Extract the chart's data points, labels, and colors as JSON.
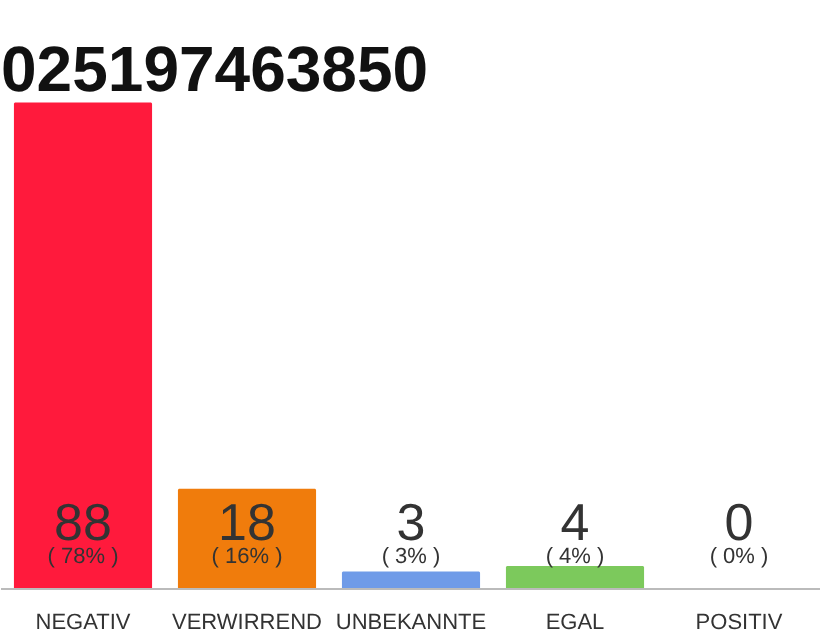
{
  "chart_data": {
    "type": "bar",
    "title": "025197463850",
    "categories": [
      "NEGATIV",
      "VERWIRREND",
      "UNBEKANNTE",
      "EGAL",
      "POSITIV"
    ],
    "values": [
      88,
      18,
      3,
      4,
      0
    ],
    "colors": [
      "#ff1a3c",
      "#f07c0c",
      "#6f9be8",
      "#7cc95c",
      "#cccccc"
    ],
    "data_labels": true,
    "annotations": [
      "( 78% )",
      "( 16% )",
      "( 3% )",
      "( 4% )",
      "( 0% )"
    ],
    "grid": false
  }
}
